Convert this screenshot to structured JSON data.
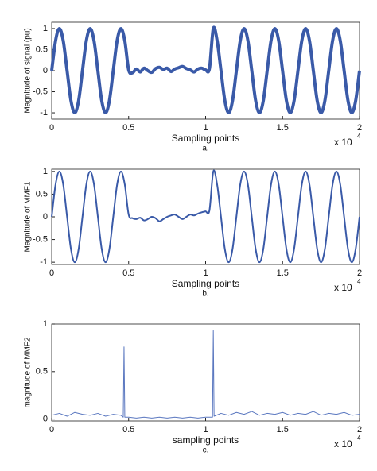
{
  "chart_data": [
    {
      "type": "line",
      "color": "#3a5aa8",
      "line_width": 4,
      "x": [
        0,
        250,
        500,
        750,
        1000,
        1250,
        1500,
        1750,
        2000,
        2250,
        2500,
        2750,
        3000,
        3250,
        3500,
        3750,
        4000,
        4250,
        4500,
        4750,
        5000,
        5250,
        5500,
        5750,
        6000,
        6250,
        6500,
        6750,
        7000,
        7250,
        7500,
        7750,
        8000,
        8250,
        8500,
        8750,
        9000,
        9250,
        9500,
        9750,
        10000,
        10250,
        10500,
        10750,
        11000,
        11250,
        11500,
        11750,
        12000,
        12250,
        12500,
        12750,
        13000,
        13250,
        13500,
        13750,
        14000,
        14250,
        14500,
        14750,
        15000,
        15250,
        15500,
        15750,
        16000,
        16250,
        16500,
        16750,
        17000,
        17250,
        17500,
        17750,
        18000,
        18250,
        18500,
        18750,
        19000,
        19250,
        19500,
        19750,
        20000
      ],
      "values": [
        0,
        0.71,
        1,
        0.71,
        0,
        -0.71,
        -1,
        -0.71,
        0,
        0.71,
        1,
        0.71,
        0,
        -0.71,
        -1,
        -0.71,
        0,
        0.71,
        1,
        0.71,
        0.02,
        -0.05,
        0.04,
        -0.03,
        0.06,
        0,
        -0.04,
        0.05,
        0.08,
        0.03,
        0.06,
        -0.02,
        0.04,
        0.07,
        0.1,
        0.05,
        0.02,
        -0.03,
        0.04,
        0.06,
        0.02,
        0.05,
        1,
        0.71,
        0,
        -0.71,
        -1,
        -0.71,
        0,
        0.71,
        1,
        0.71,
        0,
        -0.71,
        -1,
        -0.71,
        0,
        0.71,
        1,
        0.71,
        0,
        -0.71,
        -1,
        -0.71,
        0,
        0.71,
        1,
        0.71,
        0,
        -0.71,
        -1,
        -0.71,
        0,
        0.71,
        1,
        0.71,
        0,
        -0.71,
        -1,
        -0.71,
        0
      ],
      "xlim": [
        0,
        20000
      ],
      "ylim": [
        -1.15,
        1.15
      ],
      "xticks": [
        0,
        {
          "value": 5000,
          "label": "0.5"
        },
        {
          "value": 10000,
          "label": "1"
        },
        {
          "value": 15000,
          "label": "1.5"
        },
        {
          "value": 20000,
          "label": "2"
        }
      ],
      "yticks": [
        -1,
        -0.5,
        0,
        0.5,
        1
      ],
      "x_label": "Sampling points",
      "y_label": "Magnitude of signal (pu)",
      "caption": "a.",
      "x_multiplier": "x 10",
      "x_multiplier_exponent": "4",
      "grid": false
    },
    {
      "type": "line",
      "color": "#3a5aa8",
      "line_width": 2,
      "x": [
        0,
        250,
        500,
        750,
        1000,
        1250,
        1500,
        1750,
        2000,
        2250,
        2500,
        2750,
        3000,
        3250,
        3500,
        3750,
        4000,
        4250,
        4500,
        4750,
        5000,
        5250,
        5500,
        5750,
        6000,
        6250,
        6500,
        6750,
        7000,
        7250,
        7500,
        7750,
        8000,
        8250,
        8500,
        8750,
        9000,
        9250,
        9500,
        9750,
        10000,
        10250,
        10500,
        10750,
        11000,
        11250,
        11500,
        11750,
        12000,
        12250,
        12500,
        12750,
        13000,
        13250,
        13500,
        13750,
        14000,
        14250,
        14500,
        14750,
        15000,
        15250,
        15500,
        15750,
        16000,
        16250,
        16500,
        16750,
        17000,
        17250,
        17500,
        17750,
        18000,
        18250,
        18500,
        18750,
        19000,
        19250,
        19500,
        19750,
        20000
      ],
      "values": [
        0,
        0.71,
        1,
        0.71,
        0,
        -0.71,
        -1,
        -0.71,
        0,
        0.71,
        1,
        0.71,
        0,
        -0.71,
        -1,
        -0.71,
        0,
        0.71,
        1,
        0.71,
        0.05,
        -0.03,
        -0.05,
        -0.02,
        -0.08,
        -0.05,
        0,
        -0.03,
        -0.1,
        -0.05,
        0,
        0.03,
        0.05,
        0,
        -0.05,
        0,
        0.05,
        0.03,
        0.07,
        0.1,
        0.12,
        0.14,
        1,
        0.71,
        0,
        -0.71,
        -1,
        -0.71,
        0,
        0.71,
        1,
        0.71,
        0,
        -0.71,
        -1,
        -0.71,
        0,
        0.71,
        1,
        0.71,
        0,
        -0.71,
        -1,
        -0.71,
        0,
        0.71,
        1,
        0.71,
        0,
        -0.71,
        -1,
        -0.71,
        0,
        0.71,
        1,
        0.71,
        0,
        -0.71,
        -1,
        -0.71,
        0
      ],
      "xlim": [
        0,
        20000
      ],
      "ylim": [
        -1.05,
        1.05
      ],
      "xticks": [
        0,
        {
          "value": 5000,
          "label": "0.5"
        },
        {
          "value": 10000,
          "label": "1"
        },
        {
          "value": 15000,
          "label": "1.5"
        },
        {
          "value": 20000,
          "label": "2"
        }
      ],
      "yticks": [
        -1,
        -0.5,
        0,
        0.5,
        1
      ],
      "x_label": "Sampling points",
      "y_label": "Magnitude of MMF1",
      "caption": "b.",
      "x_multiplier": "x 10",
      "x_multiplier_exponent": "4",
      "grid": false
    },
    {
      "type": "line",
      "color": "#5b78c0",
      "line_width": 1,
      "x": [
        0,
        500,
        1000,
        1500,
        2000,
        2500,
        3000,
        3500,
        4000,
        4500,
        4650,
        4700,
        4750,
        5000,
        5500,
        6000,
        6500,
        7000,
        7500,
        8000,
        8500,
        9000,
        9500,
        10000,
        10450,
        10500,
        10550,
        11000,
        11500,
        12000,
        12500,
        13000,
        13500,
        14000,
        14500,
        15000,
        15500,
        16000,
        16500,
        17000,
        17500,
        18000,
        18500,
        19000,
        19500,
        20000
      ],
      "values": [
        0.04,
        0.06,
        0.03,
        0.07,
        0.05,
        0.04,
        0.06,
        0.03,
        0.05,
        0.04,
        0.02,
        0.76,
        0.02,
        0.02,
        0.01,
        0.02,
        0.01,
        0.02,
        0.01,
        0.02,
        0.01,
        0.02,
        0.01,
        0.02,
        0.02,
        0.93,
        0.03,
        0.06,
        0.04,
        0.07,
        0.05,
        0.08,
        0.04,
        0.06,
        0.05,
        0.07,
        0.04,
        0.06,
        0.05,
        0.08,
        0.04,
        0.06,
        0.05,
        0.07,
        0.04,
        0.05
      ],
      "xlim": [
        0,
        20000
      ],
      "ylim": [
        -0.02,
        1
      ],
      "xticks": [
        0,
        {
          "value": 5000,
          "label": "0.5"
        },
        {
          "value": 10000,
          "label": "1"
        },
        {
          "value": 15000,
          "label": "1.5"
        },
        {
          "value": 20000,
          "label": "2"
        }
      ],
      "yticks": [
        0,
        0.5,
        1
      ],
      "x_label": "sampling points",
      "y_label": "magnitude of MMF2",
      "caption": "c.",
      "x_multiplier": "x 10",
      "x_multiplier_exponent": "4",
      "grid": false
    }
  ]
}
